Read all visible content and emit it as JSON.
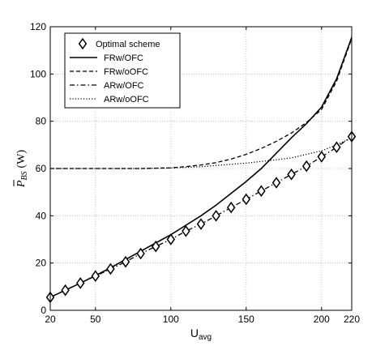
{
  "chart_data": {
    "type": "line",
    "xlabel": "U",
    "xlabel_sub": "avg",
    "ylabel_sym": "P",
    "ylabel_sub": "BS",
    "ylabel_unit": "(W)",
    "xlim": [
      20,
      220
    ],
    "ylim": [
      0,
      120
    ],
    "xticks": [
      20,
      50,
      100,
      150,
      200,
      220
    ],
    "yticks": [
      0,
      20,
      40,
      60,
      80,
      100,
      120
    ],
    "grid": true,
    "legend_position": "top-left",
    "series": [
      {
        "name": "Optimal scheme",
        "style": "markers",
        "marker": "diamond",
        "x": [
          20,
          30,
          40,
          50,
          60,
          70,
          80,
          90,
          100,
          110,
          120,
          130,
          140,
          150,
          160,
          170,
          180,
          190,
          200,
          210,
          220
        ],
        "y": [
          5.5,
          8.5,
          11.5,
          14.5,
          17.5,
          20.5,
          24,
          27,
          30,
          33.5,
          36.5,
          40,
          43.5,
          47,
          50.5,
          54,
          57.5,
          61,
          65,
          69,
          73.5
        ]
      },
      {
        "name": "FRw/OFC",
        "style": "solid",
        "x": [
          20,
          30,
          40,
          50,
          60,
          70,
          80,
          90,
          100,
          110,
          120,
          130,
          140,
          150,
          160,
          170,
          180,
          190,
          200,
          210,
          220
        ],
        "y": [
          5.5,
          8.5,
          11.5,
          14.7,
          18,
          21.5,
          25,
          28.5,
          32,
          36,
          40,
          44.5,
          49.5,
          54.5,
          60,
          66.5,
          73,
          79,
          86,
          98,
          115.5
        ]
      },
      {
        "name": "FRw/oOFC",
        "style": "dashed",
        "x": [
          20,
          40,
          60,
          80,
          100,
          110,
          120,
          130,
          140,
          150,
          160,
          170,
          180,
          190,
          200,
          210,
          220
        ],
        "y": [
          60,
          60,
          60,
          60,
          60.3,
          60.8,
          61.5,
          62.5,
          64,
          66,
          68.5,
          71.5,
          75,
          79.5,
          85,
          97,
          115
        ]
      },
      {
        "name": "ARw/OFC",
        "style": "dashdot",
        "x": [
          20,
          30,
          40,
          50,
          60,
          70,
          80,
          90,
          100,
          110,
          120,
          130,
          140,
          150,
          160,
          170,
          180,
          190,
          200,
          210,
          220
        ],
        "y": [
          5.5,
          8.5,
          11.5,
          14.5,
          17.5,
          20.5,
          24,
          27,
          30,
          33.5,
          36.5,
          40,
          43.5,
          47,
          50.5,
          54,
          57.5,
          61,
          65,
          69,
          73.5
        ]
      },
      {
        "name": "ARw/oOFC",
        "style": "dotted",
        "x": [
          20,
          40,
          60,
          80,
          100,
          110,
          120,
          130,
          140,
          150,
          160,
          170,
          180,
          190,
          200,
          210,
          220
        ],
        "y": [
          60,
          60,
          60,
          60,
          60.2,
          60.5,
          60.8,
          61.3,
          61.8,
          62.3,
          63,
          63.7,
          64.5,
          66,
          67.5,
          70,
          73
        ]
      }
    ]
  },
  "colors": {
    "axis": "#000000",
    "grid": "#bfbfbf",
    "line": "#000000"
  }
}
